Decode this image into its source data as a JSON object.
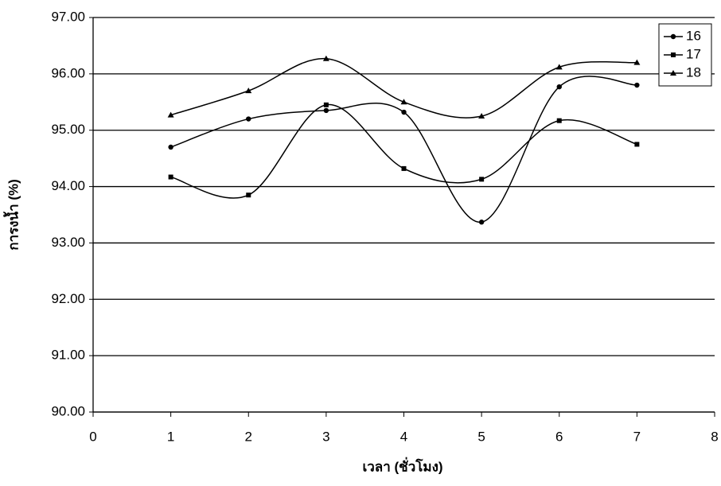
{
  "chart_data": {
    "type": "line",
    "smooth": true,
    "x_label": "เวลา (ชั่วโมง)",
    "y_label": "การงน้ำ (%)",
    "x": [
      1,
      2,
      3,
      4,
      5,
      6,
      7
    ],
    "series": [
      {
        "name": "16",
        "color": "#000000",
        "marker": "circle",
        "values": [
          94.7,
          95.2,
          95.35,
          95.32,
          93.37,
          95.77,
          95.8
        ]
      },
      {
        "name": "17",
        "color": "#000000",
        "marker": "square",
        "values": [
          94.17,
          93.85,
          95.45,
          94.32,
          94.13,
          95.17,
          94.75
        ]
      },
      {
        "name": "18",
        "color": "#000000",
        "marker": "triangle",
        "values": [
          95.27,
          95.7,
          96.27,
          95.5,
          95.25,
          96.12,
          96.2
        ]
      }
    ],
    "xlim": [
      0,
      8
    ],
    "xticks": [
      0,
      1,
      2,
      3,
      4,
      5,
      6,
      7,
      8
    ],
    "ylim": [
      90,
      97
    ],
    "yticks": [
      {
        "value": 90,
        "label": "90.00"
      },
      {
        "value": 91,
        "label": "91.00"
      },
      {
        "value": 92,
        "label": "92.00"
      },
      {
        "value": 93,
        "label": "93.00"
      },
      {
        "value": 94,
        "label": "94.00"
      },
      {
        "value": 95,
        "label": "95.00"
      },
      {
        "value": 96,
        "label": "96.00"
      },
      {
        "value": 97,
        "label": "97.00"
      }
    ],
    "grid": true,
    "legend": "top-right"
  }
}
